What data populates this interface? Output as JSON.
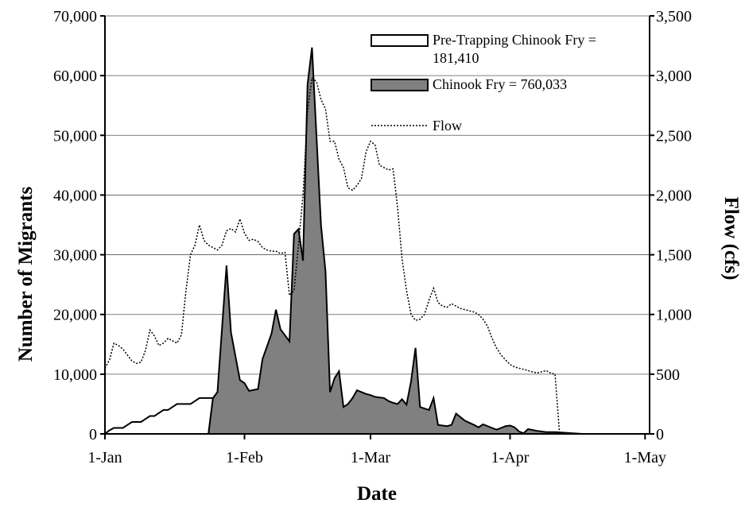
{
  "chart_data": {
    "type": "area",
    "title": "",
    "xlabel": "Date",
    "ylabel_left": "Number of Migrants",
    "ylabel_right": "Flow (cfs)",
    "x_tick_labels": [
      "1-Jan",
      "1-Feb",
      "1-Mar",
      "1-Apr",
      "1-May"
    ],
    "x_tick_days": [
      0,
      31,
      59,
      90,
      120
    ],
    "x_range_days": [
      0,
      121
    ],
    "y_left_ticks": [
      "0",
      "10,000",
      "20,000",
      "30,000",
      "40,000",
      "50,000",
      "60,000",
      "70,000"
    ],
    "y_left_range": [
      0,
      70000
    ],
    "y_right_ticks": [
      "0",
      "500",
      "1,000",
      "1,500",
      "2,000",
      "2,500",
      "3,000",
      "3,500"
    ],
    "y_right_range": [
      0,
      3500
    ],
    "grid": "horizontal",
    "legend_position": "top-right",
    "legend": {
      "pre_trapping_line1": "Pre-Trapping Chinook Fry =",
      "pre_trapping_line2": "181,410",
      "chinook_fry": "Chinook Fry = 760,033",
      "flow": "Flow"
    },
    "series": [
      {
        "name": "Pre-Trapping Chinook Fry = 181,410",
        "axis": "left",
        "style": "white-area",
        "points": [
          [
            0,
            0
          ],
          [
            1,
            600
          ],
          [
            2,
            1000
          ],
          [
            4,
            1000
          ],
          [
            5,
            1500
          ],
          [
            6,
            2000
          ],
          [
            8,
            2000
          ],
          [
            9,
            2500
          ],
          [
            10,
            3000
          ],
          [
            11,
            3000
          ],
          [
            12,
            3500
          ],
          [
            13,
            4000
          ],
          [
            14,
            4000
          ],
          [
            15,
            4500
          ],
          [
            16,
            5000
          ],
          [
            18,
            5000
          ],
          [
            19,
            5000
          ],
          [
            20,
            5500
          ],
          [
            21,
            6000
          ],
          [
            24,
            6000
          ],
          [
            23,
            0
          ]
        ]
      },
      {
        "name": "Chinook Fry = 760,033",
        "axis": "left",
        "style": "gray-area",
        "points": [
          [
            23,
            0
          ],
          [
            24,
            6000
          ],
          [
            25,
            7000
          ],
          [
            27,
            28200
          ],
          [
            28,
            17000
          ],
          [
            30,
            9000
          ],
          [
            31,
            8500
          ],
          [
            32,
            7200
          ],
          [
            34,
            7500
          ],
          [
            35,
            12500
          ],
          [
            37,
            16800
          ],
          [
            38,
            20800
          ],
          [
            39,
            17500
          ],
          [
            41,
            15500
          ],
          [
            42,
            33500
          ],
          [
            43,
            34300
          ],
          [
            44,
            29000
          ],
          [
            45,
            58500
          ],
          [
            46,
            64700
          ],
          [
            48,
            35000
          ],
          [
            49,
            27200
          ],
          [
            50,
            7000
          ],
          [
            51,
            9300
          ],
          [
            52,
            10500
          ],
          [
            53,
            4500
          ],
          [
            54,
            5000
          ],
          [
            55,
            6000
          ],
          [
            56,
            7300
          ],
          [
            57,
            7000
          ],
          [
            58,
            6700
          ],
          [
            59,
            6500
          ],
          [
            60,
            6200
          ],
          [
            62,
            6000
          ],
          [
            63,
            5500
          ],
          [
            64,
            5200
          ],
          [
            65,
            5000
          ],
          [
            66,
            5800
          ],
          [
            67,
            4900
          ],
          [
            68,
            8800
          ],
          [
            69,
            14400
          ],
          [
            70,
            4500
          ],
          [
            72,
            4000
          ],
          [
            73,
            6000
          ],
          [
            74,
            1500
          ],
          [
            76,
            1300
          ],
          [
            77,
            1500
          ],
          [
            78,
            3400
          ],
          [
            80,
            2200
          ],
          [
            82,
            1500
          ],
          [
            83,
            1100
          ],
          [
            84,
            1600
          ],
          [
            86,
            1000
          ],
          [
            87,
            700
          ],
          [
            88,
            1000
          ],
          [
            89,
            1300
          ],
          [
            90,
            1400
          ],
          [
            91,
            1100
          ],
          [
            92,
            400
          ],
          [
            93,
            100
          ],
          [
            94,
            800
          ],
          [
            96,
            500
          ],
          [
            98,
            300
          ],
          [
            100,
            300
          ],
          [
            102,
            200
          ],
          [
            104,
            100
          ],
          [
            106,
            0
          ],
          [
            121,
            0
          ]
        ]
      },
      {
        "name": "Flow",
        "axis": "right",
        "style": "dotted-line",
        "points": [
          [
            0,
            550
          ],
          [
            1,
            620
          ],
          [
            2,
            760
          ],
          [
            3,
            740
          ],
          [
            4,
            710
          ],
          [
            5,
            660
          ],
          [
            6,
            610
          ],
          [
            7,
            590
          ],
          [
            8,
            600
          ],
          [
            9,
            700
          ],
          [
            10,
            870
          ],
          [
            11,
            820
          ],
          [
            12,
            740
          ],
          [
            13,
            760
          ],
          [
            14,
            800
          ],
          [
            15,
            780
          ],
          [
            16,
            760
          ],
          [
            17,
            830
          ],
          [
            18,
            1200
          ],
          [
            19,
            1500
          ],
          [
            20,
            1580
          ],
          [
            21,
            1750
          ],
          [
            22,
            1620
          ],
          [
            23,
            1580
          ],
          [
            24,
            1560
          ],
          [
            25,
            1540
          ],
          [
            26,
            1580
          ],
          [
            27,
            1700
          ],
          [
            28,
            1720
          ],
          [
            29,
            1690
          ],
          [
            30,
            1800
          ],
          [
            31,
            1680
          ],
          [
            32,
            1620
          ],
          [
            33,
            1630
          ],
          [
            34,
            1610
          ],
          [
            35,
            1560
          ],
          [
            36,
            1540
          ],
          [
            37,
            1530
          ],
          [
            38,
            1530
          ],
          [
            39,
            1510
          ],
          [
            40,
            1520
          ],
          [
            41,
            1160
          ],
          [
            42,
            1200
          ],
          [
            43,
            1580
          ],
          [
            44,
            2000
          ],
          [
            45,
            2700
          ],
          [
            46,
            2980
          ],
          [
            47,
            2950
          ],
          [
            48,
            2800
          ],
          [
            49,
            2720
          ],
          [
            50,
            2450
          ],
          [
            51,
            2450
          ],
          [
            52,
            2300
          ],
          [
            53,
            2230
          ],
          [
            54,
            2060
          ],
          [
            55,
            2040
          ],
          [
            56,
            2080
          ],
          [
            57,
            2140
          ],
          [
            58,
            2360
          ],
          [
            59,
            2450
          ],
          [
            60,
            2420
          ],
          [
            61,
            2250
          ],
          [
            62,
            2230
          ],
          [
            63,
            2210
          ],
          [
            64,
            2220
          ],
          [
            65,
            1900
          ],
          [
            66,
            1470
          ],
          [
            67,
            1200
          ],
          [
            68,
            1000
          ],
          [
            69,
            950
          ],
          [
            70,
            960
          ],
          [
            71,
            1000
          ],
          [
            72,
            1120
          ],
          [
            73,
            1220
          ],
          [
            74,
            1100
          ],
          [
            75,
            1070
          ],
          [
            76,
            1060
          ],
          [
            77,
            1090
          ],
          [
            78,
            1070
          ],
          [
            79,
            1050
          ],
          [
            80,
            1040
          ],
          [
            81,
            1030
          ],
          [
            82,
            1020
          ],
          [
            83,
            1000
          ],
          [
            84,
            960
          ],
          [
            85,
            900
          ],
          [
            86,
            800
          ],
          [
            87,
            720
          ],
          [
            88,
            660
          ],
          [
            89,
            620
          ],
          [
            90,
            580
          ],
          [
            91,
            560
          ],
          [
            92,
            550
          ],
          [
            93,
            540
          ],
          [
            94,
            530
          ],
          [
            95,
            520
          ],
          [
            96,
            510
          ],
          [
            97,
            520
          ],
          [
            98,
            530
          ],
          [
            99,
            510
          ],
          [
            100,
            500
          ],
          [
            101,
            0
          ],
          [
            121,
            0
          ]
        ]
      }
    ]
  }
}
